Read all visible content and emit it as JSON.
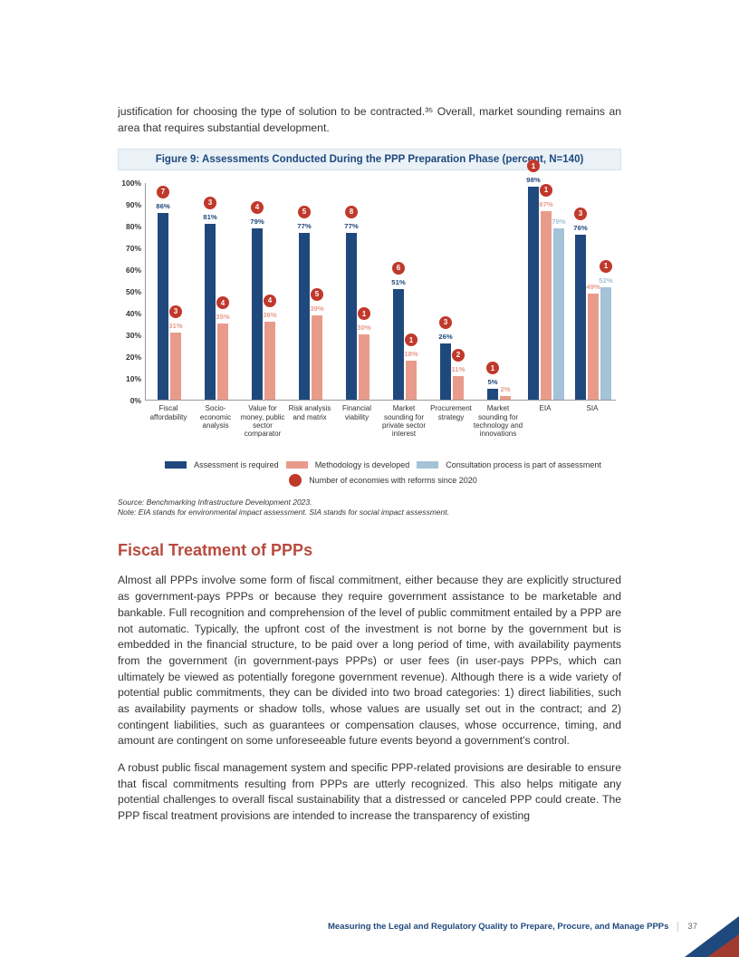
{
  "intro": "justification for choosing the type of solution to be contracted.³⁵ Overall, market sounding remains an area that requires substantial development.",
  "figure": {
    "title": "Figure 9: Assessments Conducted During the PPP Preparation Phase (percent, N=140)",
    "type": "grouped-bar",
    "ylim": [
      0,
      100
    ],
    "ytick_step": 10,
    "background_color": "#ffffff",
    "colors": {
      "assessment": "#1f497d",
      "methodology": "#e99b8b",
      "consultation": "#a4c2d8",
      "reform_dot": "#c0392b"
    },
    "legend": {
      "assessment": "Assessment is required",
      "methodology": "Methodology is developed",
      "consultation": "Consultation process is part of assessment",
      "reforms": "Number of economies with reforms since 2020"
    },
    "categories": [
      {
        "label": "Fiscal affordability",
        "bars": [
          {
            "series": "assessment",
            "value": 86,
            "reforms": 7
          },
          {
            "series": "methodology",
            "value": 31,
            "reforms": 3
          }
        ]
      },
      {
        "label": "Socio-economic analysis",
        "bars": [
          {
            "series": "assessment",
            "value": 81,
            "reforms": 3
          },
          {
            "series": "methodology",
            "value": 35,
            "reforms": 4
          }
        ]
      },
      {
        "label": "Value for money, public sector comparator",
        "bars": [
          {
            "series": "assessment",
            "value": 79,
            "reforms": 4
          },
          {
            "series": "methodology",
            "value": 36,
            "reforms": 4
          }
        ]
      },
      {
        "label": "Risk analysis and matrix",
        "bars": [
          {
            "series": "assessment",
            "value": 77,
            "reforms": 5
          },
          {
            "series": "methodology",
            "value": 39,
            "reforms": 5
          }
        ]
      },
      {
        "label": "Financial viability",
        "bars": [
          {
            "series": "assessment",
            "value": 77,
            "reforms": 8
          },
          {
            "series": "methodology",
            "value": 30,
            "reforms": 1
          }
        ]
      },
      {
        "label": "Market sounding for private sector interest",
        "bars": [
          {
            "series": "assessment",
            "value": 51,
            "reforms": 6
          },
          {
            "series": "methodology",
            "value": 18,
            "reforms": 1
          }
        ]
      },
      {
        "label": "Procurement strategy",
        "bars": [
          {
            "series": "assessment",
            "value": 26,
            "reforms": 3
          },
          {
            "series": "methodology",
            "value": 11,
            "reforms": 2
          }
        ]
      },
      {
        "label": "Market sounding for technology and innovations",
        "bars": [
          {
            "series": "assessment",
            "value": 5,
            "reforms": 1
          },
          {
            "series": "methodology",
            "value": 2
          }
        ]
      },
      {
        "label": "EIA",
        "bars": [
          {
            "series": "assessment",
            "value": 98,
            "reforms": 1
          },
          {
            "series": "methodology",
            "value": 87,
            "reforms": 1
          },
          {
            "series": "consultation",
            "value": 79
          }
        ]
      },
      {
        "label": "SIA",
        "bars": [
          {
            "series": "assessment",
            "value": 76,
            "reforms": 3
          },
          {
            "series": "methodology",
            "value": 49
          },
          {
            "series": "consultation",
            "value": 52,
            "reforms": 1
          }
        ]
      }
    ],
    "source": "Source: Benchmarking Infrastructure Development 2023.",
    "note": "Note: EIA stands for environmental impact assessment. SIA stands for social impact assessment."
  },
  "section_heading": "Fiscal Treatment of PPPs",
  "para1": "Almost all PPPs involve some form of fiscal commitment, either because they are explicitly structured as government-pays PPPs or because they require government assistance to be marketable and bankable. Full recognition and comprehension of the level of public commitment entailed by a PPP are not automatic. Typically, the upfront cost of the investment is not borne by the government but is embedded in the financial structure, to be paid over a long period of time, with availability payments from the government (in government-pays PPPs) or user fees (in user-pays PPPs, which can ultimately be viewed as potentially foregone government revenue). Although there is a wide variety of potential public commitments, they can be divided into two broad categories: 1) direct liabilities, such as availability payments or shadow tolls, whose values are usually set out in the contract; and 2) contingent liabilities, such as guarantees or compensation clauses, whose occurrence, timing, and amount are contingent on some unforeseeable future events beyond a government's control.",
  "para2": "A robust public fiscal management system and specific PPP-related provisions are desirable to ensure that fiscal commitments resulting from PPPs are utterly recognized. This also helps mitigate any potential challenges to overall fiscal sustainability that a distressed or canceled PPP could create. The PPP fiscal treatment provisions are intended to increase the transparency of existing",
  "footer_text": "Measuring the Legal and Regulatory Quality to Prepare, Procure, and Manage PPPs",
  "page_number": "37"
}
